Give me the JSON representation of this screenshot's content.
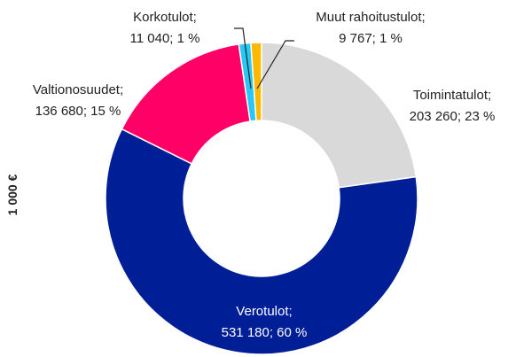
{
  "chart_data": {
    "type": "donut",
    "y_label": "1 000 €",
    "categories": [
      "Toimintatulot;",
      "Verotulot;",
      "Valtionosuudet;",
      "Korkotulot;",
      "Muut rahoitustulot;"
    ],
    "values": [
      203260,
      531180,
      136680,
      11040,
      9767
    ],
    "value_labels": [
      "203 260; 23 %",
      "531 180; 60 %",
      "136 680; 15 %",
      "11 040; 1 %",
      "9 767; 1 %"
    ],
    "colors": [
      "#d9d9d9",
      "#001e96",
      "#ff0066",
      "#27c8f5",
      "#ffb800"
    ]
  }
}
